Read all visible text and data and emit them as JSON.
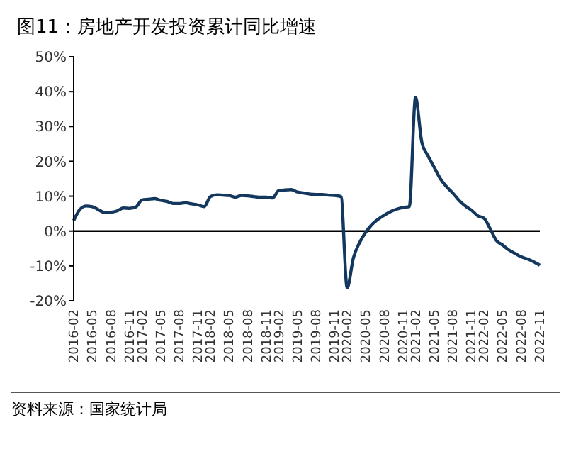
{
  "chart_data": {
    "type": "line",
    "title": "图11：房地产开发投资累计同比增速",
    "categories": [
      "2016-02",
      null,
      null,
      "2016-05",
      null,
      null,
      "2016-08",
      null,
      null,
      "2016-11",
      null,
      "2017-02",
      null,
      null,
      "2017-05",
      null,
      null,
      "2017-08",
      null,
      null,
      "2017-11",
      null,
      "2018-02",
      null,
      null,
      "2018-05",
      null,
      null,
      "2018-08",
      null,
      null,
      "2018-11",
      null,
      "2019-02",
      null,
      null,
      "2019-05",
      null,
      null,
      "2019-08",
      null,
      null,
      "2019-11",
      null,
      "2020-02",
      null,
      null,
      "2020-05",
      null,
      null,
      "2020-08",
      null,
      null,
      "2020-11",
      null,
      "2021-02",
      null,
      null,
      "2021-05",
      null,
      null,
      "2021-08",
      null,
      null,
      "2021-11",
      null,
      "2022-02",
      null,
      null,
      "2022-05",
      null,
      null,
      "2022-08",
      null,
      null,
      "2022-11"
    ],
    "series": [
      {
        "color": "#14375e",
        "values": [
          3.0,
          6.2,
          7.2,
          7.0,
          6.1,
          5.3,
          5.4,
          5.8,
          6.6,
          6.5,
          6.9,
          8.9,
          9.1,
          9.3,
          8.8,
          8.5,
          7.9,
          7.9,
          8.1,
          7.8,
          7.5,
          7.0,
          9.9,
          10.4,
          10.3,
          10.2,
          9.7,
          10.2,
          10.1,
          9.9,
          9.7,
          9.7,
          9.5,
          11.6,
          11.8,
          11.9,
          11.2,
          10.9,
          10.6,
          10.5,
          10.5,
          10.3,
          10.2,
          9.9,
          -16.3,
          -7.7,
          -3.3,
          -0.3,
          1.9,
          3.4,
          4.6,
          5.6,
          6.3,
          6.8,
          7.0,
          38.3,
          25.6,
          21.6,
          18.3,
          15.0,
          12.7,
          10.9,
          8.8,
          7.2,
          6.0,
          4.4,
          3.7,
          0.7,
          -2.7,
          -4.0,
          -5.4,
          -6.4,
          -7.4,
          -8.0,
          -8.8,
          -9.8
        ]
      }
    ],
    "ylim": [
      -20,
      50
    ],
    "yticks": [
      {
        "value": -20,
        "label": "-20%"
      },
      {
        "value": -10,
        "label": "-10%"
      },
      {
        "value": 0,
        "label": "0%"
      },
      {
        "value": 10,
        "label": "10%"
      },
      {
        "value": 20,
        "label": "20%"
      },
      {
        "value": 30,
        "label": "30%"
      },
      {
        "value": 40,
        "label": "40%"
      },
      {
        "value": 50,
        "label": "50%"
      }
    ],
    "legend": false,
    "marker": "none",
    "line_style": "solid",
    "annotations": [
      "资料来源：国家统计局"
    ]
  }
}
